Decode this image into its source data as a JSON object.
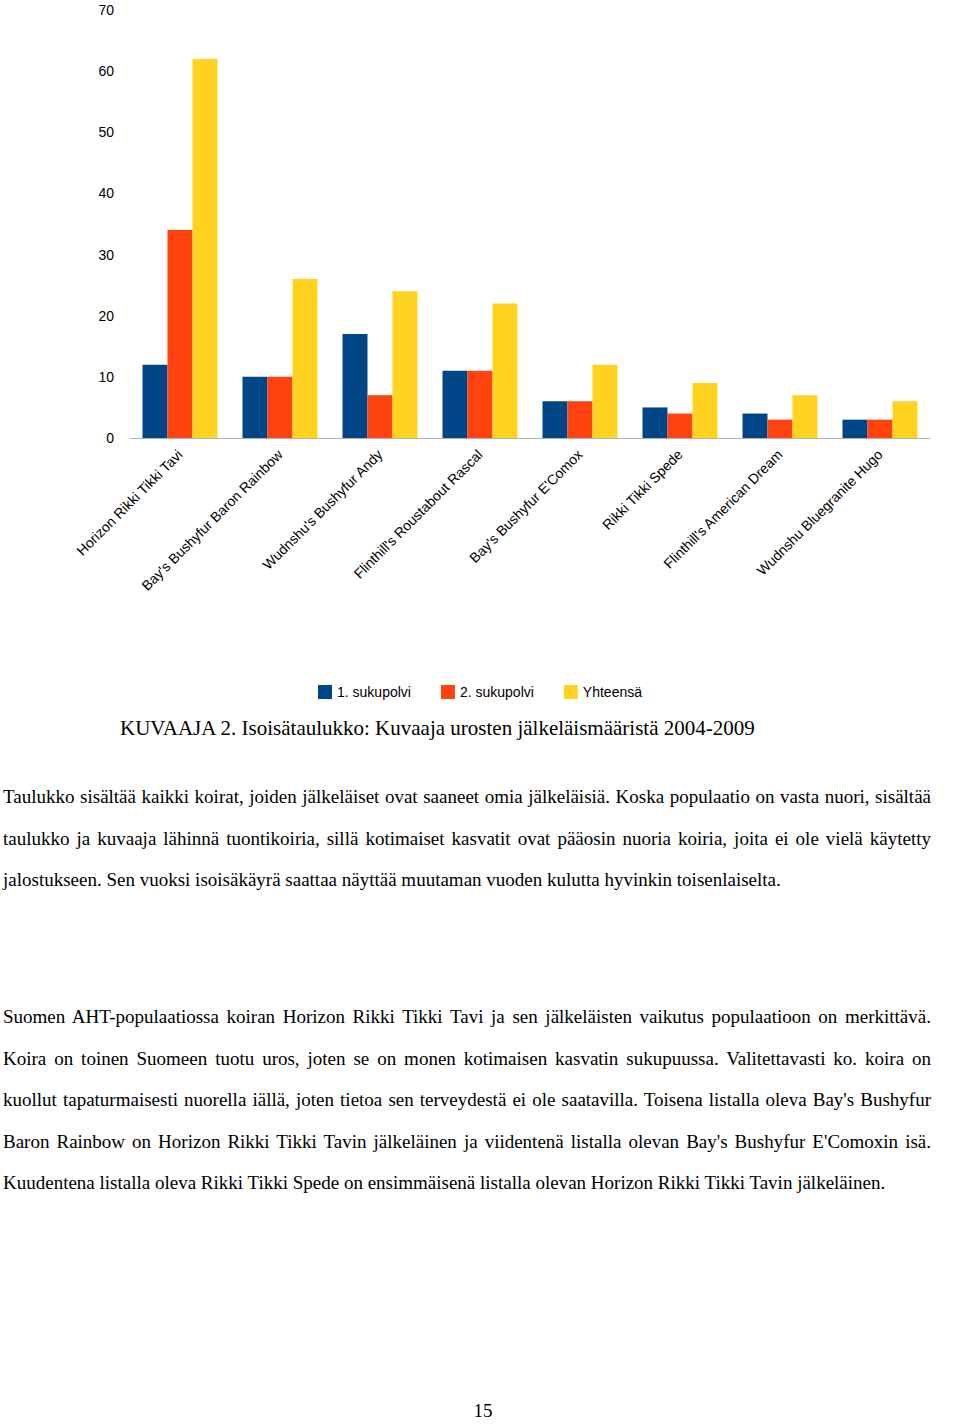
{
  "chart_data": {
    "type": "bar",
    "categories": [
      "Horizon Rikki Tikki Tavi",
      "Bay's Bushyfur Baron Rainbow",
      "Wudnshu's Bushyfur Andy",
      "Flinthill's Roustabout Rascal",
      "Bay's Bushyfur E'Comox",
      "Rikki Tikki Spede",
      "Flinthill's American Dream",
      "Wudnshu Bluegranite Hugo"
    ],
    "series": [
      {
        "name": "1. sukupolvi",
        "color": "#004586",
        "values": [
          12,
          10,
          17,
          11,
          6,
          5,
          4,
          3
        ]
      },
      {
        "name": "2. sukupolvi",
        "color": "#ff420e",
        "values": [
          34,
          10,
          7,
          11,
          6,
          4,
          3,
          3
        ]
      },
      {
        "name": "Yhteensä",
        "color": "#ffd320",
        "values": [
          62,
          26,
          24,
          22,
          12,
          9,
          7,
          6
        ]
      }
    ],
    "ylim": [
      0,
      70
    ],
    "yticks": [
      0,
      10,
      20,
      30,
      40,
      50,
      60,
      70
    ],
    "grid": false,
    "legend": "bottom"
  },
  "caption": "KUVAAJA 2. Isoisätaulukko: Kuvaaja urosten jälkeläismääristä 2004-2009",
  "paragraphs": [
    "Taulukko sisältää kaikki koirat, joiden jälkeläiset ovat saaneet omia jälkeläisiä. Koska populaatio on vasta nuori, sisältää taulukko ja kuvaaja lähinnä tuontikoiria, sillä kotimaiset kasvatit ovat pääosin nuoria koiria, joita ei ole vielä käytetty jalostukseen. Sen vuoksi isoisäkäyrä saattaa näyttää muutaman vuoden kulutta hyvinkin toisenlaiselta.",
    "Suomen AHT-populaatiossa koiran Horizon Rikki Tikki Tavi ja sen jälkeläisten vaikutus populaatioon on merkittävä. Koira on toinen Suomeen tuotu uros, joten se on monen kotimaisen kasvatin sukupuussa. Valitettavasti ko. koira on kuollut tapaturmaisesti nuorella iällä, joten tietoa sen terveydestä ei ole saatavilla. Toisena listalla oleva Bay's Bushyfur Baron Rainbow on Horizon Rikki Tikki Tavin jälkeläinen ja viidentenä listalla olevan Bay's Bushyfur E'Comoxin isä. Kuudentena listalla oleva Rikki Tikki Spede on ensimmäisenä listalla olevan Horizon Rikki Tikki Tavin jälkeläinen."
  ],
  "page_number": "15"
}
